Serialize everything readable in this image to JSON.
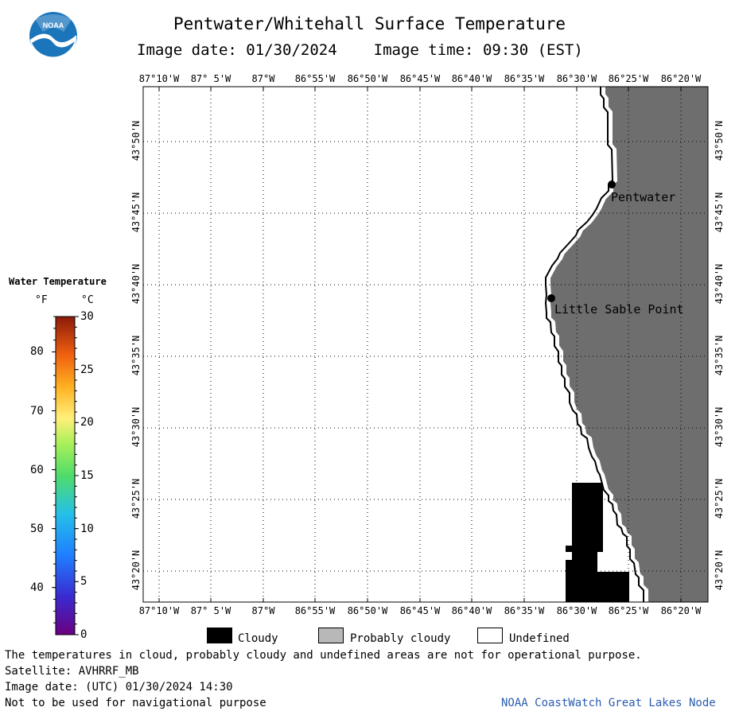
{
  "header": {
    "title": "Pentwater/Whitehall Surface Temperature",
    "image_date": "Image date: 01/30/2024",
    "image_time": "Image time: 09:30 (EST)"
  },
  "logo": {
    "text": "NOAA"
  },
  "map": {
    "lon_labels": [
      "87°10'W",
      "87° 5'W",
      "87°W",
      "86°55'W",
      "86°50'W",
      "86°45'W",
      "86°40'W",
      "86°35'W",
      "86°30'W",
      "86°25'W",
      "86°20'W"
    ],
    "lat_labels": [
      "43°50'N",
      "43°45'N",
      "43°40'N",
      "43°35'N",
      "43°30'N",
      "43°25'N",
      "43°20'N"
    ],
    "places": [
      {
        "name": "Pentwater"
      },
      {
        "name": "Little Sable Point"
      }
    ],
    "colors": {
      "land": "#6e6e6e",
      "cloud": "#000000",
      "water_undefined": "#ffffff",
      "grid": "#000000"
    }
  },
  "color_scale": {
    "title": "Water Temperature",
    "unit_f": "°F",
    "unit_c": "°C",
    "f_ticks": [
      "80",
      "70",
      "60",
      "50",
      "40"
    ],
    "c_ticks": [
      "30",
      "25",
      "20",
      "15",
      "10",
      "5",
      "0"
    ],
    "range_c": [
      0,
      30
    ]
  },
  "legend": {
    "items": [
      {
        "label": "Cloudy",
        "color": "#000000"
      },
      {
        "label": "Probably cloudy",
        "color": "#b8b8b8"
      },
      {
        "label": "Undefined",
        "color": "#ffffff"
      }
    ]
  },
  "footer": {
    "disclaimer": "The temperatures in cloud, probably cloudy and undefined areas are not for operational purpose.",
    "satellite": "Satellite: AVHRRF_MB",
    "utc_date": "Image date: (UTC) 01/30/2024  14:30",
    "nav": "Not to be used for navigational purpose",
    "credit": "NOAA CoastWatch Great Lakes Node"
  }
}
